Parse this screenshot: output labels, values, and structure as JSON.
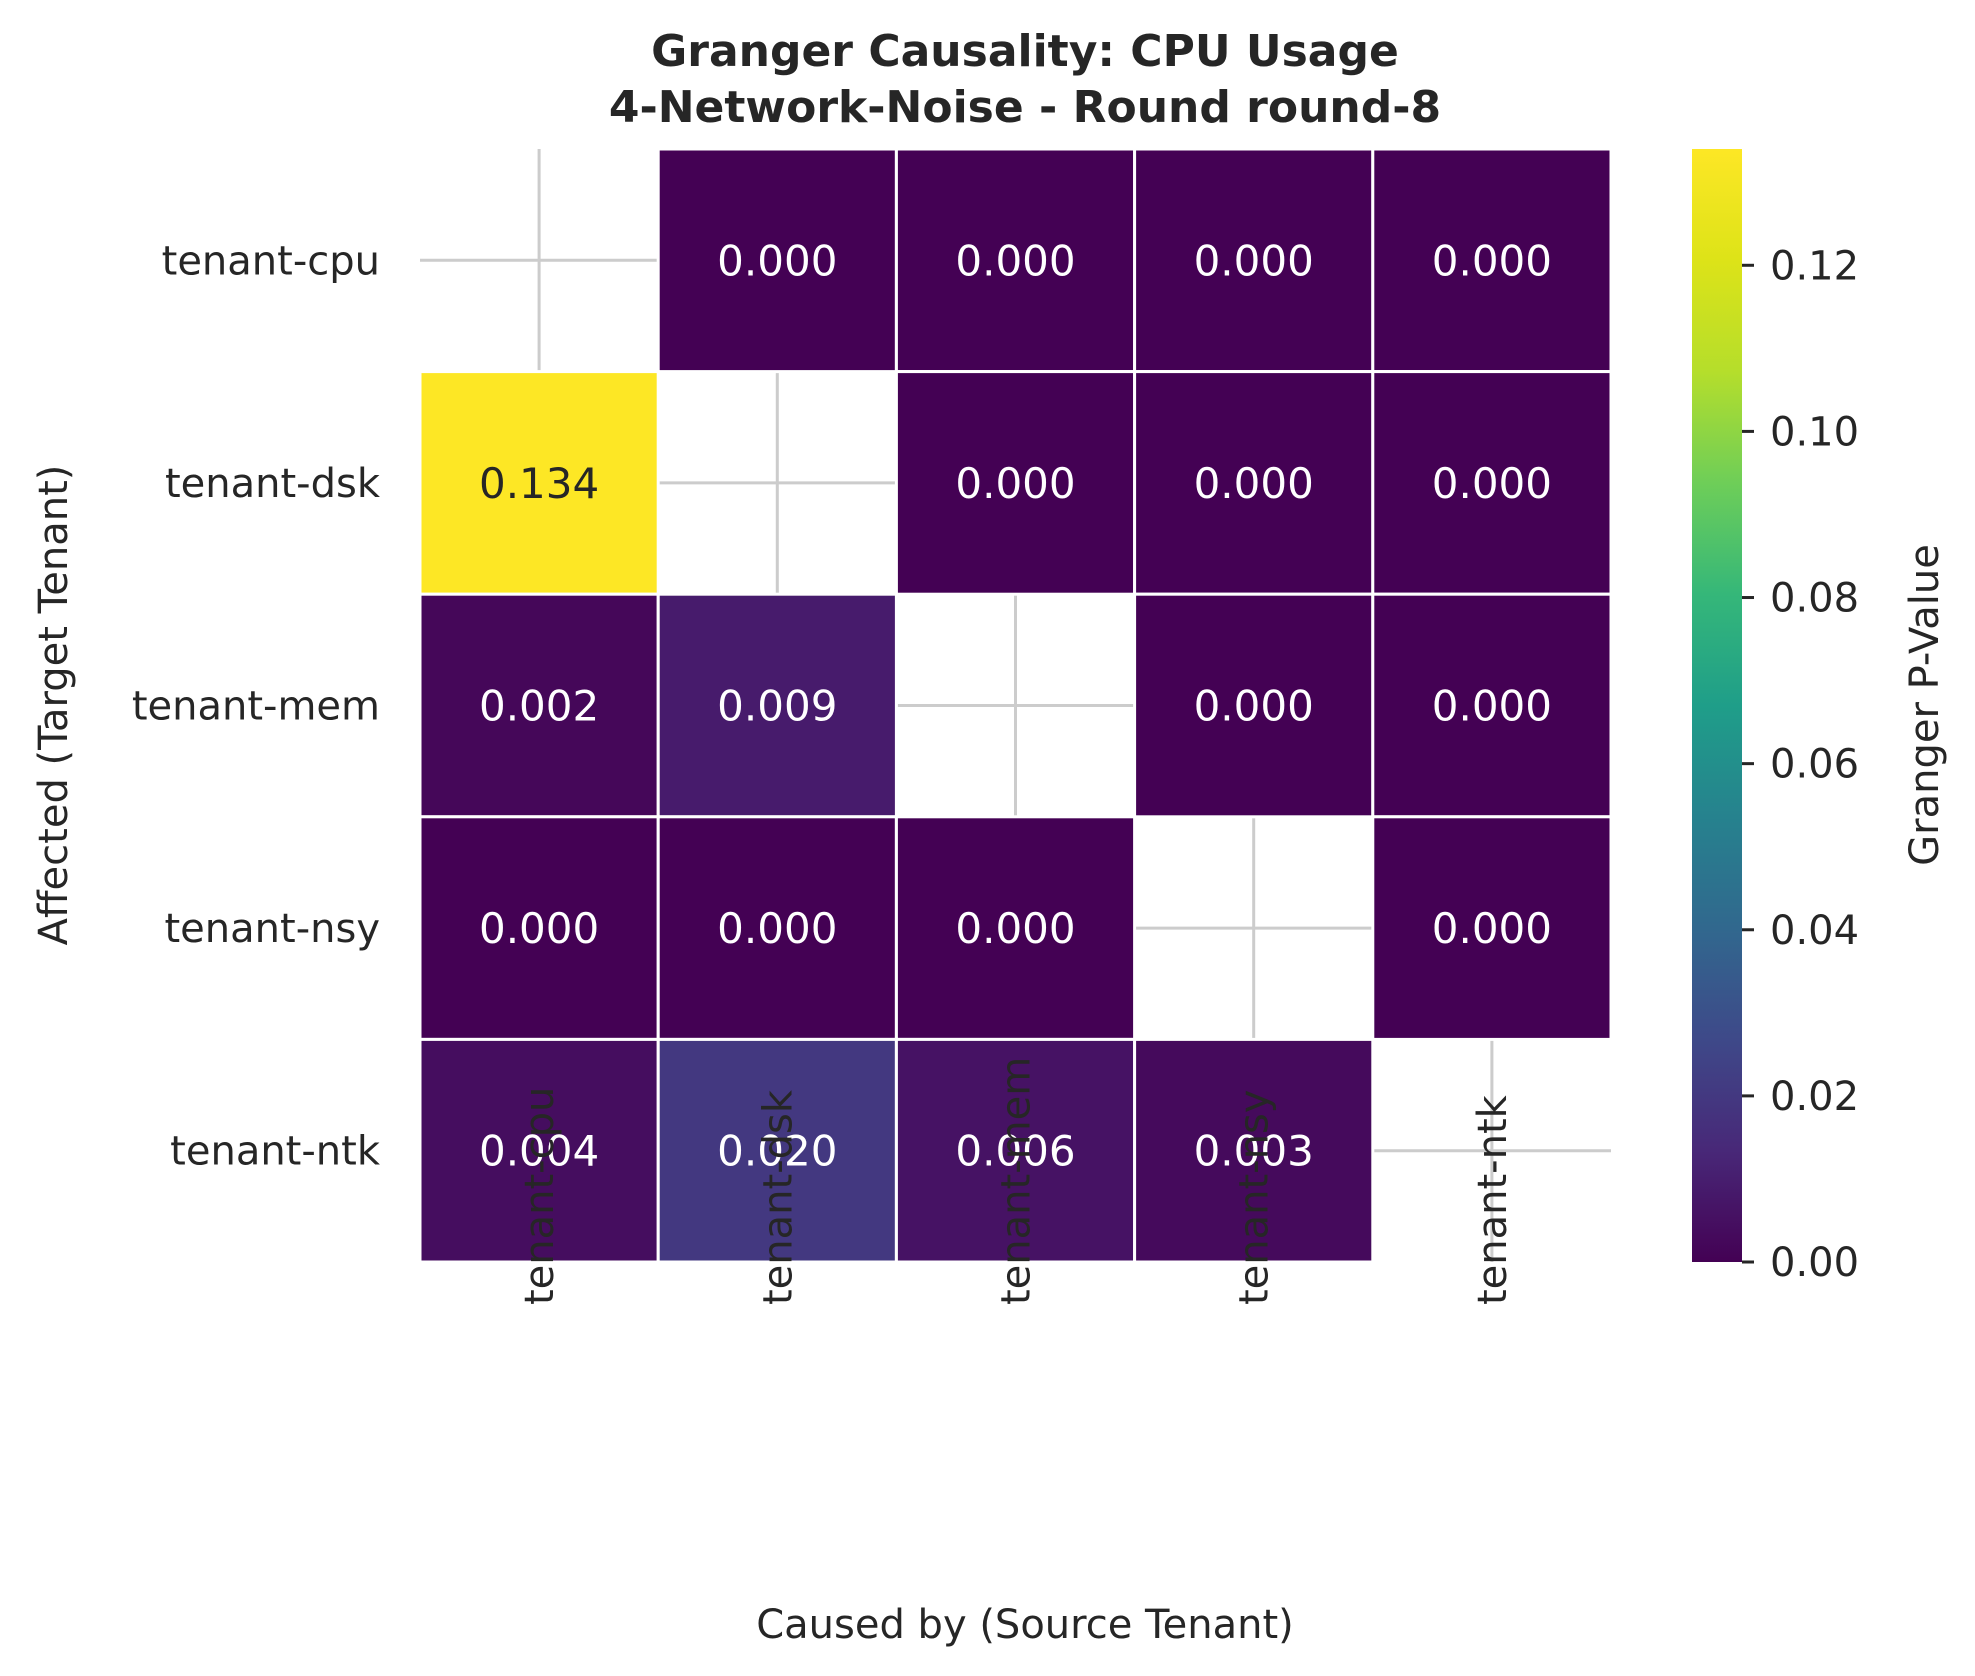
{
  "chart_data": {
    "type": "heatmap",
    "title_line1": "Granger Causality: CPU Usage",
    "title_line2": "4-Network-Noise - Round round-8",
    "xlabel": "Caused by (Source Tenant)",
    "ylabel": "Affected (Target Tenant)",
    "x_categories": [
      "tenant-cpu",
      "tenant-dsk",
      "tenant-mem",
      "tenant-nsy",
      "tenant-ntk"
    ],
    "y_categories": [
      "tenant-cpu",
      "tenant-dsk",
      "tenant-mem",
      "tenant-nsy",
      "tenant-ntk"
    ],
    "values": [
      [
        null,
        0.0,
        0.0,
        0.0,
        0.0
      ],
      [
        0.134,
        null,
        0.0,
        0.0,
        0.0
      ],
      [
        0.002,
        0.009,
        null,
        0.0,
        0.0
      ],
      [
        0.0,
        0.0,
        0.0,
        null,
        0.0
      ],
      [
        0.004,
        0.02,
        0.006,
        0.003,
        null
      ]
    ],
    "value_format_decimals": 3,
    "colormap": "viridis",
    "colorbar": {
      "label": "Granger P-Value",
      "range": [
        0,
        0.134
      ],
      "ticks": [
        0.0,
        0.02,
        0.04,
        0.06,
        0.08,
        0.1,
        0.12
      ],
      "tick_labels": [
        "0.00",
        "0.02",
        "0.04",
        "0.06",
        "0.08",
        "0.10",
        "0.12"
      ]
    },
    "missing_cell_marker": "grid cross",
    "colors": {
      "low": "#440154",
      "high": "#fde725",
      "grid": "#cccccc",
      "cell_border": "#ffffff"
    }
  }
}
